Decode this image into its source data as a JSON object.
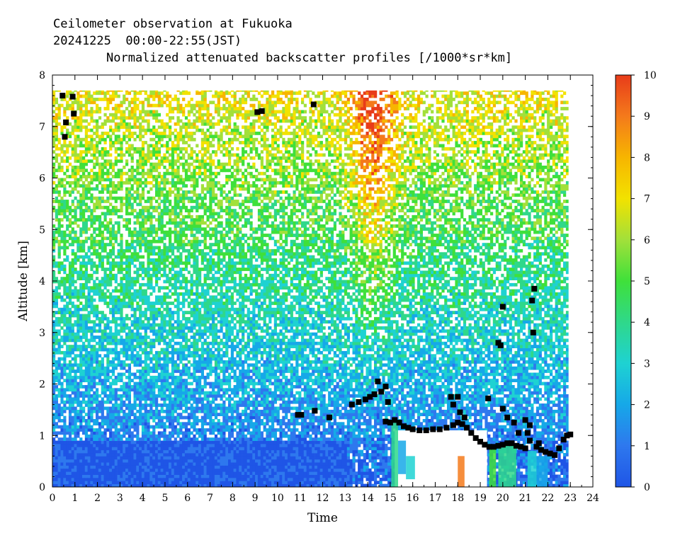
{
  "header": {
    "line1": "Ceilometer observation at Fukuoka",
    "line2": "20241225  00:00-22:55(JST)",
    "line3": "Normalized attenuated backscatter profiles [/1000*sr*km]"
  },
  "chart_data": {
    "type": "heatmap",
    "title": "Normalized attenuated backscatter profiles [/1000*sr*km]",
    "xlabel": "Time",
    "ylabel": "Altitude [km]",
    "xlim": [
      0,
      24
    ],
    "ylim": [
      0,
      8
    ],
    "x_ticks": [
      "0",
      "1",
      "2",
      "3",
      "4",
      "5",
      "6",
      "7",
      "8",
      "9",
      "10",
      "11",
      "12",
      "13",
      "14",
      "15",
      "16",
      "17",
      "18",
      "19",
      "20",
      "21",
      "22",
      "23",
      "24"
    ],
    "y_ticks": [
      "0",
      "1",
      "2",
      "3",
      "4",
      "5",
      "6",
      "7",
      "8"
    ],
    "data_extent": {
      "time_end": 22.92,
      "altitude_top": 7.7
    },
    "colorbar": {
      "range": [
        0,
        10
      ],
      "ticks": [
        "0",
        "1",
        "2",
        "3",
        "4",
        "5",
        "6",
        "7",
        "8",
        "9",
        "10"
      ],
      "colors": [
        "#1f55e6",
        "#2e78ee",
        "#16a8e8",
        "#1ed2d2",
        "#2fd88a",
        "#3fe03a",
        "#a2e03a",
        "#f2e200",
        "#f7b500",
        "#f47a1b",
        "#e83c1a"
      ]
    },
    "cloud_base_points": [
      [
        0.45,
        7.6
      ],
      [
        0.9,
        7.58
      ],
      [
        0.95,
        7.25
      ],
      [
        0.6,
        7.08
      ],
      [
        0.55,
        6.8
      ],
      [
        9.1,
        7.28
      ],
      [
        9.3,
        7.3
      ],
      [
        11.6,
        7.43
      ],
      [
        10.9,
        1.4
      ],
      [
        11.05,
        1.4
      ],
      [
        11.65,
        1.48
      ],
      [
        12.3,
        1.35
      ],
      [
        13.3,
        1.6
      ],
      [
        13.6,
        1.65
      ],
      [
        13.9,
        1.7
      ],
      [
        14.1,
        1.75
      ],
      [
        14.3,
        1.8
      ],
      [
        14.45,
        2.05
      ],
      [
        14.6,
        1.85
      ],
      [
        14.8,
        1.95
      ],
      [
        14.9,
        1.65
      ],
      [
        14.8,
        1.27
      ],
      [
        15.0,
        1.25
      ],
      [
        15.2,
        1.3
      ],
      [
        15.4,
        1.25
      ],
      [
        15.6,
        1.18
      ],
      [
        15.8,
        1.15
      ],
      [
        16.0,
        1.12
      ],
      [
        16.3,
        1.1
      ],
      [
        16.6,
        1.1
      ],
      [
        16.9,
        1.12
      ],
      [
        17.2,
        1.12
      ],
      [
        17.5,
        1.15
      ],
      [
        17.8,
        1.2
      ],
      [
        18.0,
        1.25
      ],
      [
        18.2,
        1.22
      ],
      [
        18.4,
        1.15
      ],
      [
        18.6,
        1.05
      ],
      [
        18.8,
        0.95
      ],
      [
        19.0,
        0.88
      ],
      [
        19.2,
        0.82
      ],
      [
        19.4,
        0.78
      ],
      [
        19.6,
        0.78
      ],
      [
        19.8,
        0.8
      ],
      [
        20.0,
        0.82
      ],
      [
        20.2,
        0.85
      ],
      [
        20.4,
        0.85
      ],
      [
        20.6,
        0.8
      ],
      [
        20.8,
        0.78
      ],
      [
        21.0,
        0.75
      ],
      [
        21.2,
        0.9
      ],
      [
        21.5,
        0.78
      ],
      [
        21.7,
        0.72
      ],
      [
        21.9,
        0.68
      ],
      [
        22.1,
        0.65
      ],
      [
        22.3,
        0.62
      ],
      [
        22.5,
        0.75
      ],
      [
        22.7,
        0.92
      ],
      [
        22.85,
        1.0
      ],
      [
        23.0,
        1.02
      ],
      [
        17.7,
        1.75
      ],
      [
        17.8,
        1.6
      ],
      [
        18.0,
        1.75
      ],
      [
        18.1,
        1.45
      ],
      [
        18.3,
        1.35
      ],
      [
        19.35,
        1.72
      ],
      [
        19.8,
        2.8
      ],
      [
        19.9,
        2.75
      ],
      [
        20.0,
        3.5
      ],
      [
        20.0,
        1.52
      ],
      [
        20.2,
        1.35
      ],
      [
        20.5,
        1.25
      ],
      [
        20.7,
        1.05
      ],
      [
        21.0,
        1.3
      ],
      [
        21.2,
        1.2
      ],
      [
        21.3,
        3.62
      ],
      [
        21.35,
        3.0
      ],
      [
        21.4,
        3.85
      ],
      [
        21.1,
        1.05
      ],
      [
        21.6,
        0.85
      ]
    ]
  }
}
